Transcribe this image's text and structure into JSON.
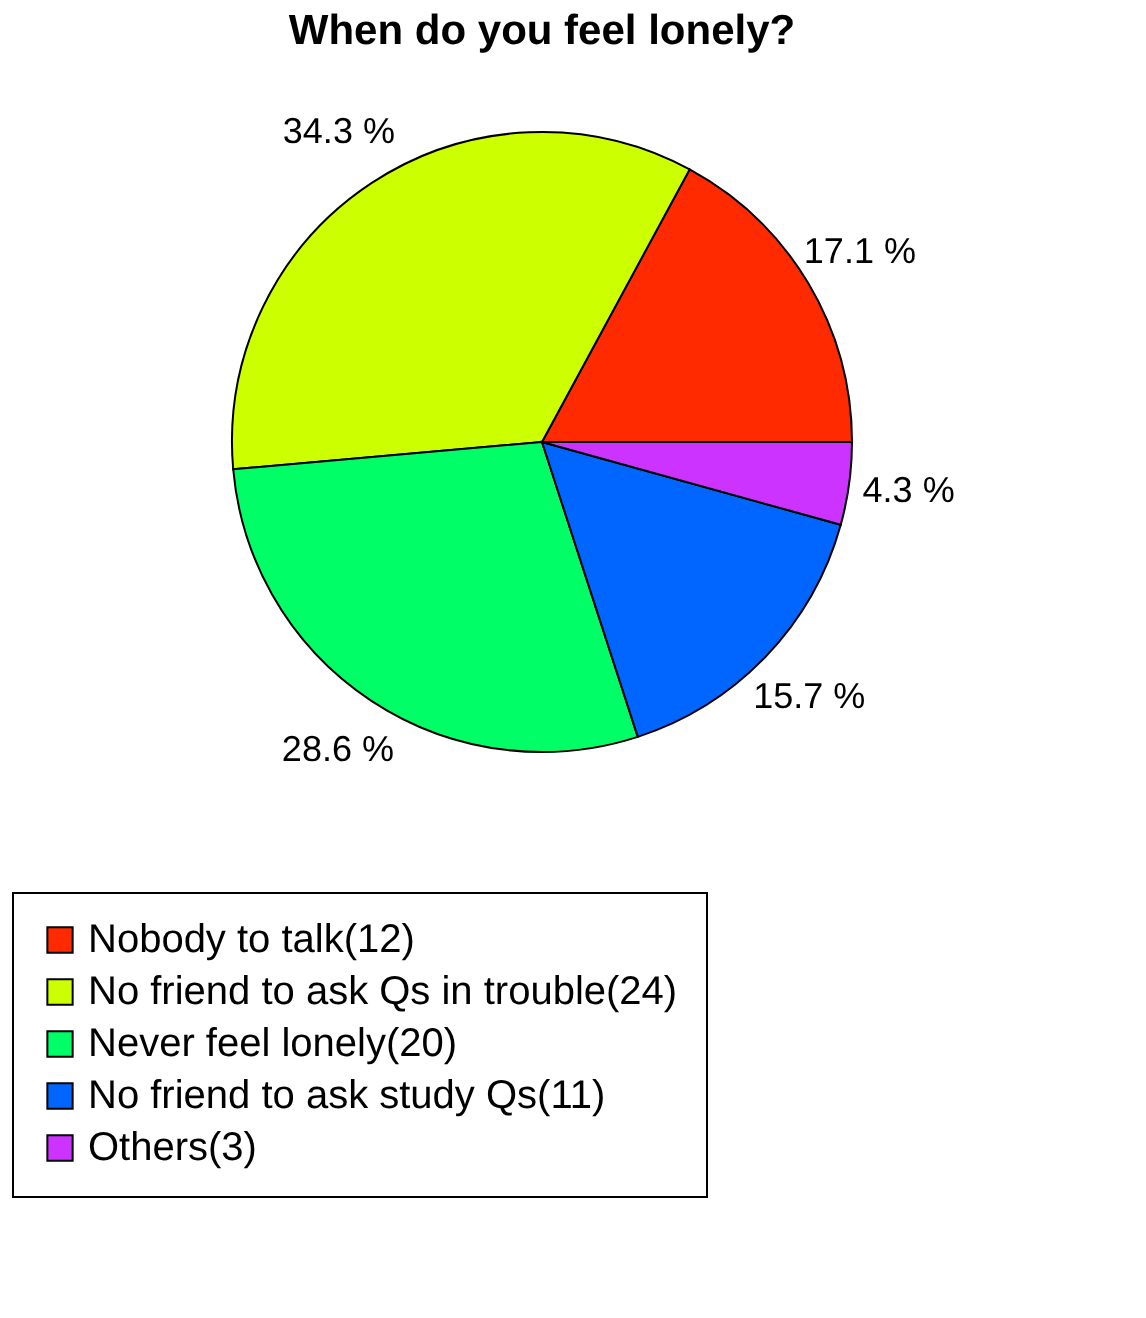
{
  "chart_data": {
    "type": "pie",
    "title": "When do you feel lonely?",
    "categories": [
      "Nobody to talk(12)",
      "No friend to ask Qs in trouble(24)",
      "Never feel lonely(20)",
      "No friend to ask study Qs(11)",
      "Others(3)"
    ],
    "values": [
      17.1,
      34.3,
      28.6,
      15.7,
      4.3
    ],
    "value_labels": [
      "17.1 %",
      "34.3 %",
      "28.6 %",
      "15.7 %",
      "4.3 %"
    ],
    "colors": [
      "#ff2a00",
      "#ccff00",
      "#00ff66",
      "#0066ff",
      "#cc33ff"
    ],
    "legend": "bottom"
  }
}
